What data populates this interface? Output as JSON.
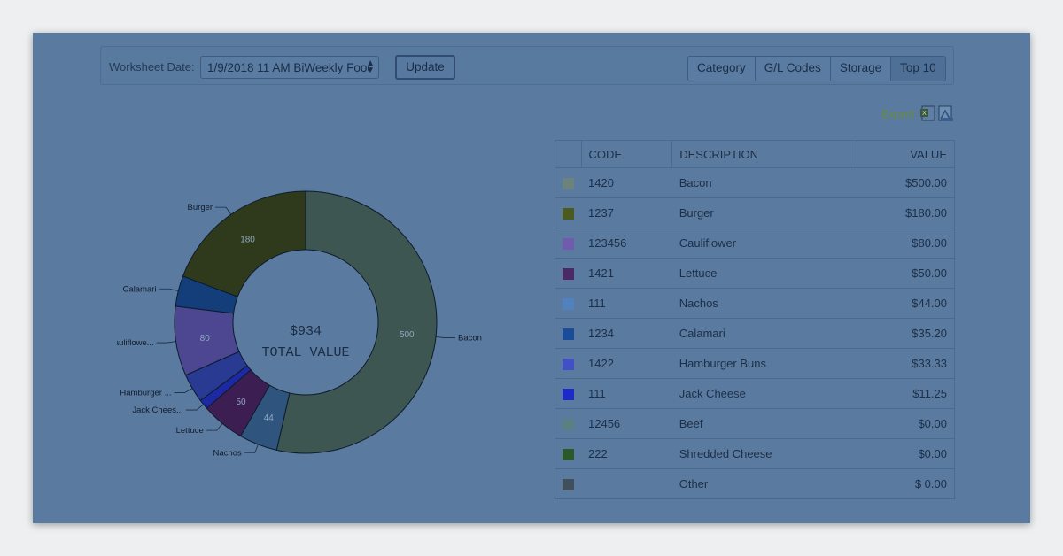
{
  "toolbar": {
    "worksheet_label": "Worksheet Date:",
    "worksheet_value": "1/9/2018 11 AM BiWeekly Food",
    "update_label": "Update",
    "segments": [
      "Category",
      "G/L Codes",
      "Storage",
      "Top 10"
    ],
    "active_segment": "Top 10"
  },
  "export": {
    "label": "Export",
    "icons": [
      "excel-icon",
      "pdf-icon"
    ]
  },
  "donut": {
    "center_value": "$934",
    "center_label": "TOTAL VALUE"
  },
  "chart_data": {
    "type": "pie",
    "categories": [
      "Bacon",
      "Nachos",
      "Lettuce",
      "Jack Chees...",
      "Hamburger ...",
      "Cauliflowe...",
      "Calamari",
      "Burger"
    ],
    "values": [
      500,
      44,
      50,
      11.25,
      33.33,
      80,
      35.2,
      180
    ],
    "slice_labels": [
      "500",
      "44",
      "50",
      "",
      "",
      "80",
      "",
      "180"
    ],
    "colors": [
      "#3e5651",
      "#2f557f",
      "#3d1e52",
      "#1d29a3",
      "#283a91",
      "#4d4791",
      "#133e7a",
      "#2f3a1d"
    ]
  },
  "table": {
    "headers": {
      "code": "CODE",
      "description": "DESCRIPTION",
      "value": "VALUE"
    },
    "rows": [
      {
        "color": "#6c827c",
        "code": "1420",
        "description": "Bacon",
        "value": "$500.00"
      },
      {
        "color": "#4b5b1f",
        "code": "1237",
        "description": "Burger",
        "value": "$180.00"
      },
      {
        "color": "#705bae",
        "code": "123456",
        "description": "Cauliflower",
        "value": "$80.00"
      },
      {
        "color": "#4a2a66",
        "code": "1421",
        "description": "Lettuce",
        "value": "$50.00"
      },
      {
        "color": "#4f82be",
        "code": "111",
        "description": "Nachos",
        "value": "$44.00"
      },
      {
        "color": "#1a4c9a",
        "code": "1234",
        "description": "Calamari",
        "value": "$35.20"
      },
      {
        "color": "#4150c2",
        "code": "1422",
        "description": "Hamburger Buns",
        "value": "$33.33"
      },
      {
        "color": "#1f29c6",
        "code": "111",
        "description": "Jack Cheese",
        "value": "$11.25"
      },
      {
        "color": "#5c7f84",
        "code": "12456",
        "description": "Beef",
        "value": "$0.00"
      },
      {
        "color": "#2a5a2a",
        "code": "222",
        "description": "Shredded Cheese",
        "value": "$0.00"
      },
      {
        "color": "#3f4f5c",
        "code": "",
        "description": "Other",
        "value": "$ 0.00"
      }
    ]
  }
}
